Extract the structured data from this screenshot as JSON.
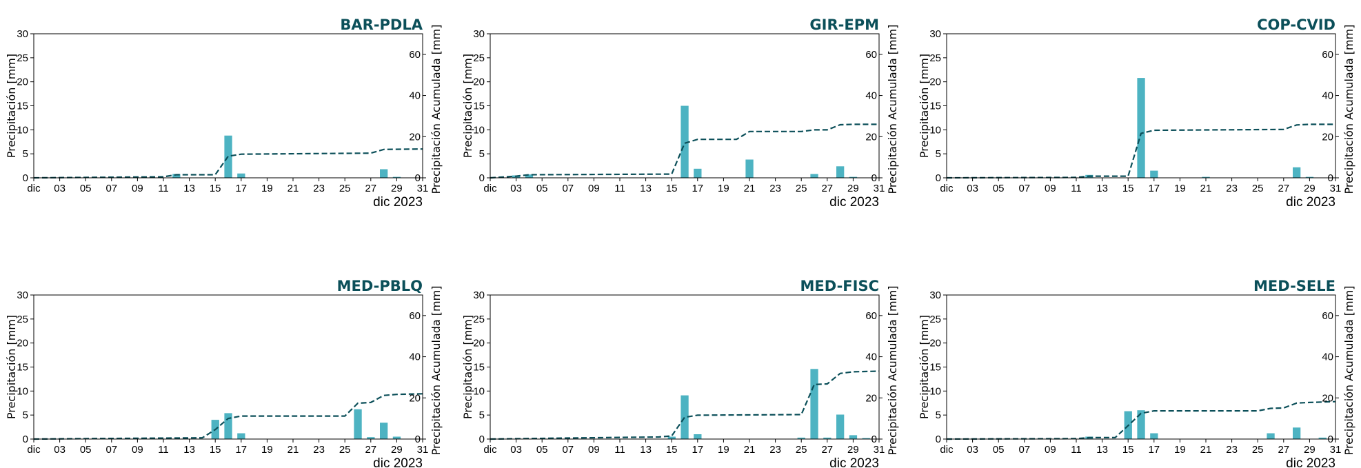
{
  "colors": {
    "bar": "#4db3c2",
    "cumulative_line": "#0b4f59",
    "title": "#0b4f59"
  },
  "chart_data": [
    {
      "type": "bar",
      "title": "BAR-PDLA",
      "ylabel": "Precipitación [mm]",
      "y2label": "Precipitación Acumulada [mm]",
      "xunit": "dic 2023",
      "ylim": [
        0,
        30
      ],
      "y2lim": [
        0,
        70
      ],
      "yticks": [
        "0",
        "5",
        "10",
        "15",
        "20",
        "25",
        "30"
      ],
      "y2ticks": [
        "0",
        "20",
        "40",
        "60"
      ],
      "xtick_labels": [
        "dic",
        "03",
        "05",
        "07",
        "09",
        "11",
        "13",
        "15",
        "17",
        "19",
        "21",
        "23",
        "25",
        "27",
        "29",
        "31"
      ],
      "series": [
        {
          "type": "bar",
          "x": [
            12,
            16,
            17,
            28,
            29
          ],
          "values": [
            0.8,
            8.8,
            0.9,
            1.8,
            0.2
          ]
        },
        {
          "type": "line",
          "style": "dashed",
          "x": [
            1,
            11,
            12,
            15,
            16,
            17,
            27,
            28,
            31
          ],
          "values": [
            0,
            0.5,
            1.5,
            1.5,
            10.5,
            11.5,
            12,
            13.8,
            14
          ]
        }
      ]
    },
    {
      "type": "bar",
      "title": "GIR-EPM",
      "ylabel": "Precipitación [mm]",
      "y2label": "Precipitación Acumulada [mm]",
      "xunit": "dic 2023",
      "ylim": [
        0,
        30
      ],
      "y2lim": [
        0,
        70
      ],
      "yticks": [
        "0",
        "5",
        "10",
        "15",
        "20",
        "25",
        "30"
      ],
      "y2ticks": [
        "0",
        "20",
        "40",
        "60"
      ],
      "xtick_labels": [
        "dic",
        "03",
        "05",
        "07",
        "09",
        "11",
        "13",
        "15",
        "17",
        "19",
        "21",
        "23",
        "25",
        "27",
        "29",
        "31"
      ],
      "series": [
        {
          "type": "bar",
          "x": [
            3,
            4,
            16,
            17,
            21,
            26,
            28,
            29
          ],
          "values": [
            0.5,
            0.7,
            15,
            1.9,
            3.8,
            0.8,
            2.4,
            0.2
          ]
        },
        {
          "type": "line",
          "style": "dashed",
          "x": [
            1,
            3,
            4,
            15,
            16,
            17,
            20,
            21,
            25,
            26,
            27,
            28,
            29,
            31
          ],
          "values": [
            0,
            0.8,
            1.5,
            1.8,
            16.8,
            18.7,
            18.7,
            22.5,
            22.5,
            23.3,
            23.3,
            25.8,
            26,
            26
          ]
        }
      ]
    },
    {
      "type": "bar",
      "title": "COP-CVID",
      "ylabel": "Precipitación [mm]",
      "y2label": "Precipitación Acumulada [mm]",
      "xunit": "dic 2023",
      "ylim": [
        0,
        30
      ],
      "y2lim": [
        0,
        70
      ],
      "yticks": [
        "0",
        "5",
        "10",
        "15",
        "20",
        "25",
        "30"
      ],
      "y2ticks": [
        "0",
        "20",
        "40",
        "60"
      ],
      "xtick_labels": [
        "dic",
        "03",
        "05",
        "07",
        "09",
        "11",
        "13",
        "15",
        "17",
        "19",
        "21",
        "23",
        "25",
        "27",
        "29",
        "31"
      ],
      "series": [
        {
          "type": "bar",
          "x": [
            12,
            16,
            17,
            21,
            28,
            29
          ],
          "values": [
            0.6,
            20.8,
            1.5,
            0.2,
            2.2,
            0.2
          ]
        },
        {
          "type": "line",
          "style": "dashed",
          "x": [
            1,
            11,
            12,
            15,
            16,
            17,
            27,
            28,
            29,
            31
          ],
          "values": [
            0,
            0.2,
            0.8,
            0.8,
            21.6,
            23.1,
            23.5,
            25.7,
            26,
            26
          ]
        }
      ]
    },
    {
      "type": "bar",
      "title": "MED-PBLQ",
      "ylabel": "Precipitación [mm]",
      "y2label": "Precipitación Acumulada [mm]",
      "xunit": "dic 2023",
      "ylim": [
        0,
        30
      ],
      "y2lim": [
        0,
        70
      ],
      "yticks": [
        "0",
        "5",
        "10",
        "15",
        "20",
        "25",
        "30"
      ],
      "y2ticks": [
        "0",
        "20",
        "40",
        "60"
      ],
      "xtick_labels": [
        "dic",
        "03",
        "05",
        "07",
        "09",
        "11",
        "13",
        "15",
        "17",
        "19",
        "21",
        "23",
        "25",
        "27",
        "29",
        "31"
      ],
      "series": [
        {
          "type": "bar",
          "x": [
            15,
            16,
            17,
            26,
            27,
            28,
            29
          ],
          "values": [
            4.0,
            5.4,
            1.2,
            6.2,
            0.4,
            3.4,
            0.5
          ]
        },
        {
          "type": "line",
          "style": "dashed",
          "x": [
            1,
            7,
            14,
            15,
            16,
            17,
            25,
            26,
            27,
            28,
            29,
            31
          ],
          "values": [
            0,
            0.3,
            0.6,
            4.6,
            10.0,
            11.2,
            11.2,
            17.4,
            17.8,
            21.2,
            21.7,
            22
          ]
        }
      ]
    },
    {
      "type": "bar",
      "title": "MED-FISC",
      "ylabel": "Precipitación [mm]",
      "y2label": "Precipitación Acumulada [mm]",
      "xunit": "dic 2023",
      "ylim": [
        0,
        30
      ],
      "y2lim": [
        0,
        70
      ],
      "yticks": [
        "0",
        "5",
        "10",
        "15",
        "20",
        "25",
        "30"
      ],
      "y2ticks": [
        "0",
        "20",
        "40",
        "60"
      ],
      "xtick_labels": [
        "dic",
        "03",
        "05",
        "07",
        "09",
        "11",
        "13",
        "15",
        "17",
        "19",
        "21",
        "23",
        "25",
        "27",
        "29",
        "31"
      ],
      "series": [
        {
          "type": "bar",
          "x": [
            15,
            16,
            17,
            25,
            26,
            27,
            28,
            29,
            30
          ],
          "values": [
            0.5,
            9.1,
            1.0,
            0.3,
            14.6,
            0.3,
            5.1,
            0.8,
            0.2
          ]
        },
        {
          "type": "line",
          "style": "dashed",
          "x": [
            1,
            7,
            14,
            15,
            16,
            17,
            25,
            26,
            27,
            28,
            29,
            31
          ],
          "values": [
            0,
            0.5,
            1.0,
            1.5,
            10.6,
            11.6,
            11.9,
            26.5,
            26.8,
            31.9,
            32.7,
            33
          ]
        }
      ]
    },
    {
      "type": "bar",
      "title": "MED-SELE",
      "ylabel": "Precipitación [mm]",
      "y2label": "Precipitación Acumulada [mm]",
      "xunit": "dic 2023",
      "ylim": [
        0,
        30
      ],
      "y2lim": [
        0,
        70
      ],
      "yticks": [
        "0",
        "5",
        "10",
        "15",
        "20",
        "25",
        "30"
      ],
      "y2ticks": [
        "0",
        "20",
        "40",
        "60"
      ],
      "xtick_labels": [
        "dic",
        "03",
        "05",
        "07",
        "09",
        "11",
        "13",
        "15",
        "17",
        "19",
        "21",
        "23",
        "25",
        "27",
        "29",
        "31"
      ],
      "series": [
        {
          "type": "bar",
          "x": [
            12,
            15,
            16,
            17,
            26,
            28,
            30
          ],
          "values": [
            0.5,
            5.8,
            6.0,
            1.2,
            1.2,
            2.4,
            0.3
          ]
        },
        {
          "type": "line",
          "style": "dashed",
          "x": [
            1,
            11,
            12,
            14,
            15,
            16,
            17,
            25,
            26,
            27,
            28,
            29,
            31
          ],
          "values": [
            0,
            0.2,
            0.7,
            0.7,
            6.5,
            12.5,
            13.7,
            13.7,
            14.9,
            15.1,
            17.5,
            17.8,
            18.2
          ]
        }
      ]
    }
  ]
}
